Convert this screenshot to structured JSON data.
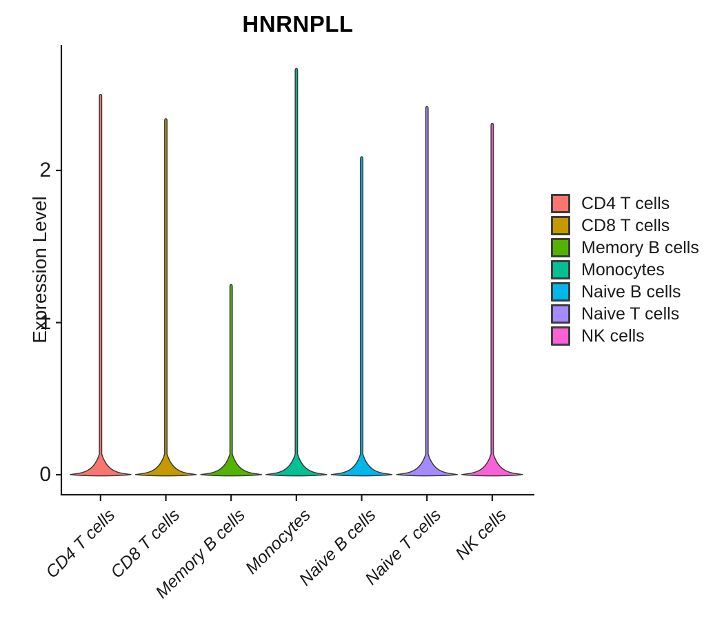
{
  "chart_data": {
    "type": "violin",
    "title": "HNRNPLL",
    "xlabel": "",
    "ylabel": "Expression Level",
    "categories": [
      "CD4 T cells",
      "CD8 T cells",
      "Memory B cells",
      "Monocytes",
      "Naive B cells",
      "Naive T cells",
      "NK cells"
    ],
    "series": [
      {
        "name": "CD4 T cells",
        "color": "#F8766D",
        "max_expression": 2.5,
        "mode": 0
      },
      {
        "name": "CD8 T cells",
        "color": "#C49A00",
        "max_expression": 2.34,
        "mode": 0
      },
      {
        "name": "Memory B cells",
        "color": "#53B400",
        "max_expression": 1.25,
        "mode": 0
      },
      {
        "name": "Monocytes",
        "color": "#00C094",
        "max_expression": 2.67,
        "mode": 0
      },
      {
        "name": "Naive B cells",
        "color": "#00B6EB",
        "max_expression": 2.09,
        "mode": 0
      },
      {
        "name": "Naive T cells",
        "color": "#A58AFF",
        "max_expression": 2.42,
        "mode": 0
      },
      {
        "name": "NK cells",
        "color": "#FB61D7",
        "max_expression": 2.31,
        "mode": 0
      }
    ],
    "yticks": [
      "0",
      "1",
      "2"
    ],
    "ylim": [
      0,
      2.83
    ],
    "grid": false,
    "legend_position": "right",
    "axis_color": "#1a1a1a",
    "violin_outline_color": "#3a3a3a"
  }
}
